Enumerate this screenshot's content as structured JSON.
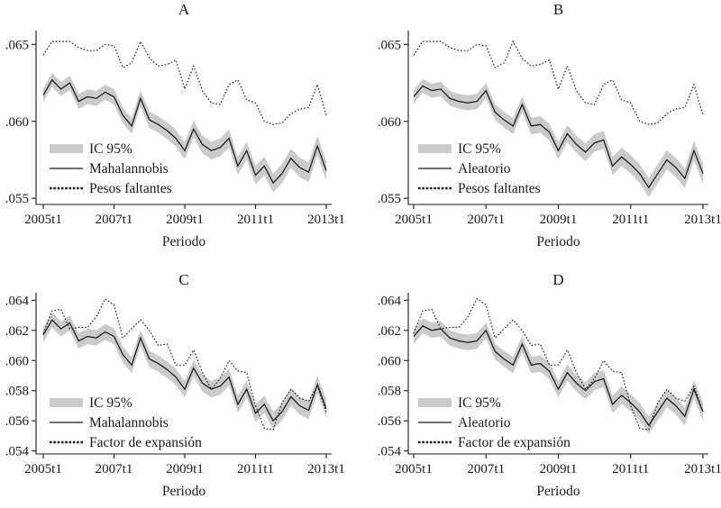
{
  "styles": {
    "background": "#ffffff",
    "line_color": "#1a1a1a",
    "band_color": "#cbcbcb",
    "text_color": "#1a1a1a"
  },
  "chart_data": {
    "type": "line",
    "xlabel": "Periodo",
    "ci_label": "IC 95%",
    "x_categories": [
      "2005t1",
      "2005t2",
      "2005t3",
      "2005t4",
      "2006t1",
      "2006t2",
      "2006t3",
      "2006t4",
      "2007t1",
      "2007t2",
      "2007t3",
      "2007t4",
      "2008t1",
      "2008t2",
      "2008t3",
      "2008t4",
      "2009t1",
      "2009t2",
      "2009t3",
      "2009t4",
      "2010t1",
      "2010t2",
      "2010t3",
      "2010t4",
      "2011t1",
      "2011t2",
      "2011t3",
      "2011t4",
      "2012t1",
      "2012t2",
      "2012t3",
      "2012t4",
      "2013t1"
    ],
    "x_tick_labels": [
      "2005t1",
      "2007t1",
      "2009t1",
      "2011t1",
      "2013t1"
    ],
    "x_tick_indices": [
      0,
      8,
      16,
      24,
      32
    ],
    "series_values": {
      "mahalannobis": [
        0.0617,
        0.0627,
        0.0621,
        0.0625,
        0.0613,
        0.0616,
        0.0615,
        0.0619,
        0.0616,
        0.0604,
        0.0597,
        0.0615,
        0.0601,
        0.0598,
        0.0594,
        0.0589,
        0.0581,
        0.0595,
        0.0585,
        0.0581,
        0.0583,
        0.0589,
        0.0571,
        0.0581,
        0.0565,
        0.0571,
        0.056,
        0.0566,
        0.0576,
        0.057,
        0.0567,
        0.0584,
        0.0568
      ],
      "aleatorio": [
        0.0616,
        0.0623,
        0.062,
        0.0621,
        0.0615,
        0.0613,
        0.0612,
        0.0613,
        0.062,
        0.0606,
        0.0601,
        0.0597,
        0.0611,
        0.0597,
        0.0598,
        0.0593,
        0.0581,
        0.0592,
        0.0585,
        0.058,
        0.0586,
        0.0588,
        0.0571,
        0.0577,
        0.0572,
        0.0566,
        0.0557,
        0.0566,
        0.0575,
        0.057,
        0.0563,
        0.0581,
        0.0566
      ],
      "pesos_faltantes": [
        0.0643,
        0.0652,
        0.0652,
        0.0652,
        0.0648,
        0.0646,
        0.0646,
        0.065,
        0.0649,
        0.0635,
        0.0638,
        0.0652,
        0.0641,
        0.0636,
        0.0637,
        0.064,
        0.0621,
        0.0636,
        0.062,
        0.0612,
        0.0611,
        0.0624,
        0.0627,
        0.0614,
        0.0612,
        0.06,
        0.0598,
        0.0599,
        0.0605,
        0.0608,
        0.0609,
        0.0624,
        0.0604
      ],
      "factor_expansion": [
        0.0618,
        0.0633,
        0.0634,
        0.0621,
        0.0622,
        0.0622,
        0.0629,
        0.0641,
        0.0637,
        0.0615,
        0.0621,
        0.0627,
        0.062,
        0.061,
        0.0611,
        0.0597,
        0.0597,
        0.0607,
        0.0592,
        0.0581,
        0.0588,
        0.06,
        0.0593,
        0.0592,
        0.057,
        0.0555,
        0.0554,
        0.0572,
        0.0581,
        0.0575,
        0.0573,
        0.0583,
        0.0566
      ]
    },
    "panels": [
      {
        "title": "A",
        "xlabel": "Periodo",
        "solid_series": "mahalannobis",
        "dotted_series": "pesos_faltantes",
        "legend": [
          "IC 95%",
          "Mahalannobis",
          "Pesos faltantes"
        ],
        "y_tick_labels": [
          ".065",
          ".060",
          ".055"
        ],
        "y_tick_values": [
          0.065,
          0.06,
          0.055
        ],
        "ylim": [
          0.0546,
          0.0659
        ],
        "ci_half_start": 0.00045,
        "ci_half_end": 0.00065
      },
      {
        "title": "B",
        "xlabel": "Periodo",
        "solid_series": "aleatorio",
        "dotted_series": "pesos_faltantes",
        "legend": [
          "IC 95%",
          "Aleatorio",
          "Pesos faltantes"
        ],
        "y_tick_labels": [
          ".065",
          ".060",
          ".055"
        ],
        "y_tick_values": [
          0.065,
          0.06,
          0.055
        ],
        "ylim": [
          0.0546,
          0.0659
        ],
        "ci_half_start": 0.00045,
        "ci_half_end": 0.00065
      },
      {
        "title": "C",
        "xlabel": "Periodo",
        "solid_series": "mahalannobis",
        "dotted_series": "factor_expansion",
        "legend": [
          "IC 95%",
          "Mahalannobis",
          "Factor de expansión"
        ],
        "y_tick_labels": [
          ".064",
          ".062",
          ".060",
          ".058",
          ".056",
          ".054"
        ],
        "y_tick_values": [
          0.064,
          0.062,
          0.06,
          0.058,
          0.056,
          0.054
        ],
        "ylim": [
          0.0538,
          0.0645
        ],
        "ci_half_start": 0.0005,
        "ci_half_end": 0.0006
      },
      {
        "title": "D",
        "xlabel": "Periodo",
        "solid_series": "aleatorio",
        "dotted_series": "factor_expansion",
        "legend": [
          "IC 95%",
          "Aleatorio",
          "Factor de expansión"
        ],
        "y_tick_labels": [
          ".064",
          ".062",
          ".060",
          ".058",
          ".056",
          ".054"
        ],
        "y_tick_values": [
          0.064,
          0.062,
          0.06,
          0.058,
          0.056,
          0.054
        ],
        "ylim": [
          0.0538,
          0.0645
        ],
        "ci_half_start": 0.0005,
        "ci_half_end": 0.0006
      }
    ]
  }
}
